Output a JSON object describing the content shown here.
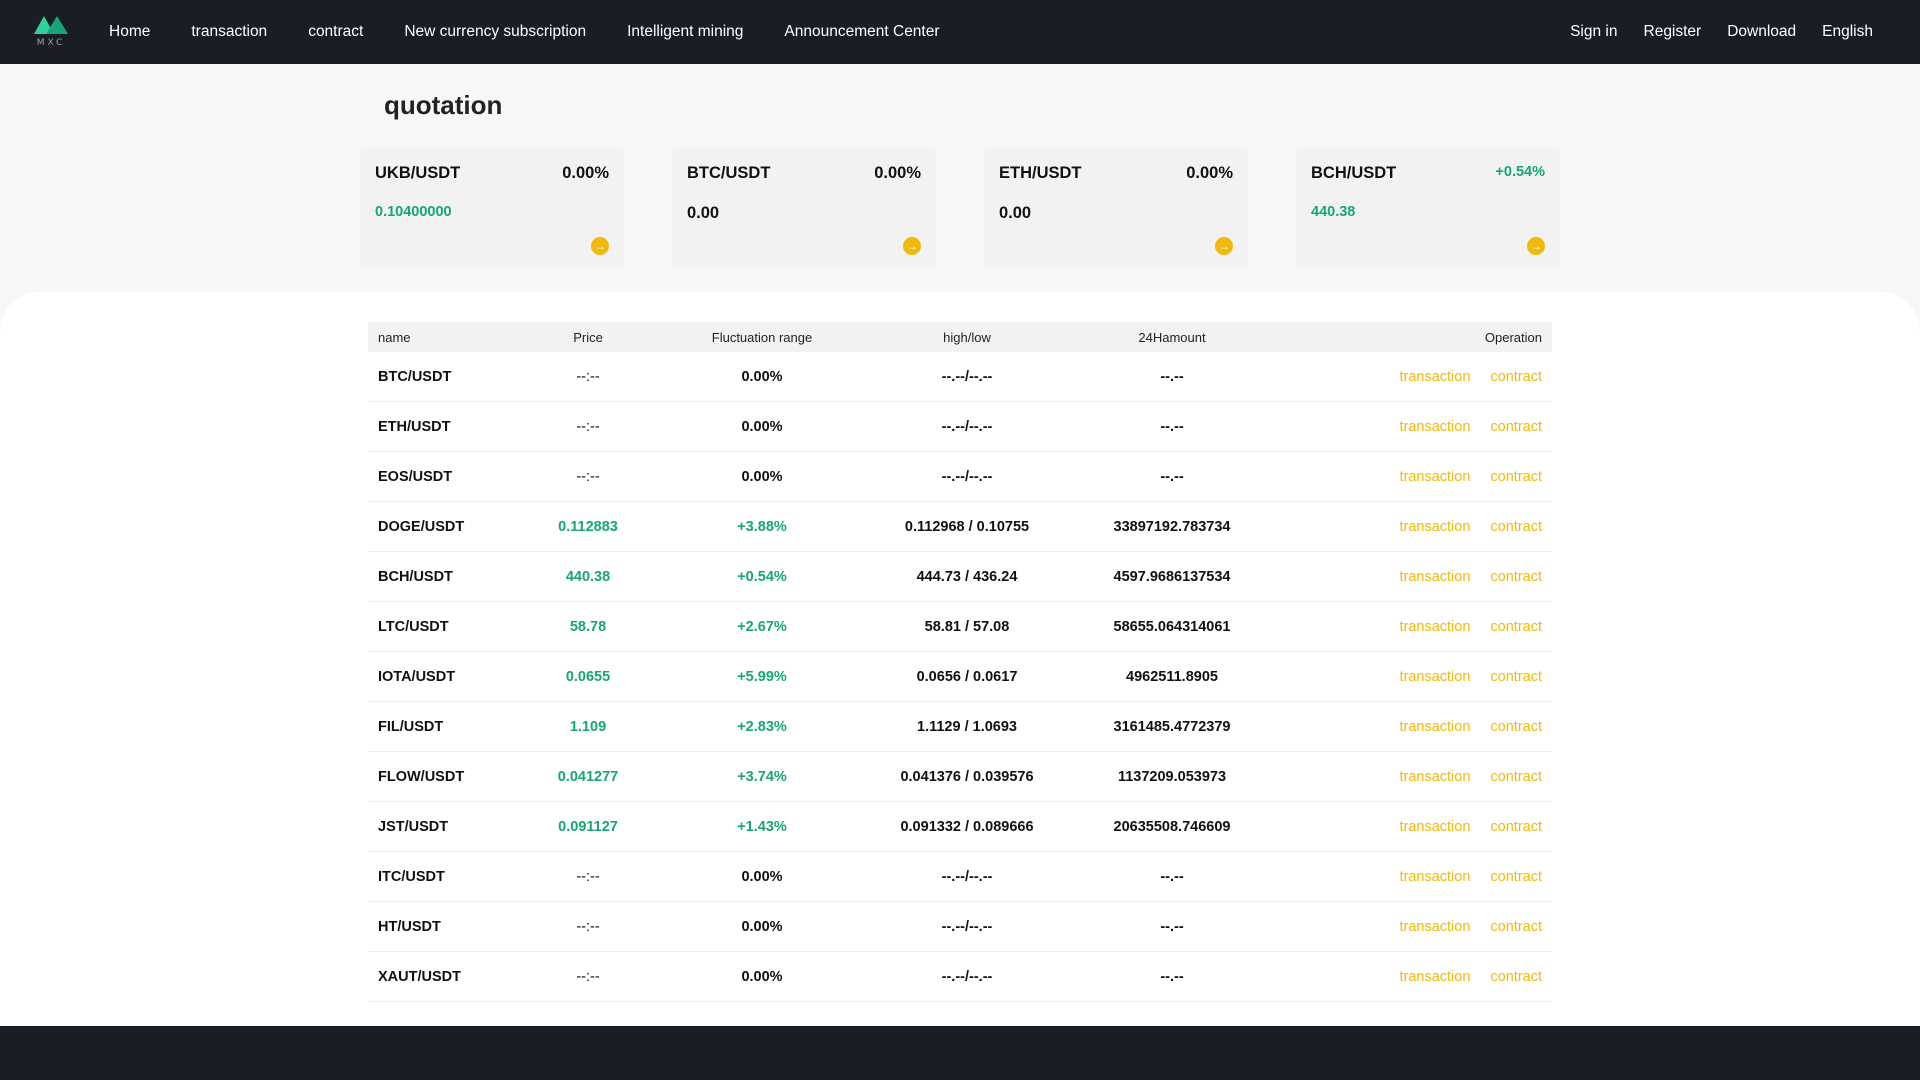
{
  "header": {
    "logo_text": "MXC",
    "nav": [
      "Home",
      "transaction",
      "contract",
      "New currency subscription",
      "Intelligent mining",
      "Announcement Center"
    ],
    "right": [
      "Sign in",
      "Register",
      "Download",
      "English"
    ]
  },
  "page": {
    "title": "quotation"
  },
  "cards": [
    {
      "pair": "UKB/USDT",
      "change": "0.00%",
      "price": "0.10400000",
      "price_green": true,
      "change_green": false
    },
    {
      "pair": "BTC/USDT",
      "change": "0.00%",
      "price": "0.00",
      "price_green": false,
      "change_green": false
    },
    {
      "pair": "ETH/USDT",
      "change": "0.00%",
      "price": "0.00",
      "price_green": false,
      "change_green": false
    },
    {
      "pair": "BCH/USDT",
      "change": "+0.54%",
      "price": "440.38",
      "price_green": true,
      "change_green": true
    }
  ],
  "table": {
    "headers": {
      "name": "name",
      "price": "Price",
      "change": "Fluctuation range",
      "highlow": "high/low",
      "amount": "24Hamount",
      "operation": "Operation"
    },
    "op_labels": {
      "transaction": "transaction",
      "contract": "contract"
    },
    "rows": [
      {
        "name": "BTC/USDT",
        "price": "--:--",
        "change": "0.00%",
        "highlow": "--.--/--.--",
        "amount": "--.--",
        "up": false
      },
      {
        "name": "ETH/USDT",
        "price": "--:--",
        "change": "0.00%",
        "highlow": "--.--/--.--",
        "amount": "--.--",
        "up": false
      },
      {
        "name": "EOS/USDT",
        "price": "--:--",
        "change": "0.00%",
        "highlow": "--.--/--.--",
        "amount": "--.--",
        "up": false
      },
      {
        "name": "DOGE/USDT",
        "price": "0.112883",
        "change": "+3.88%",
        "highlow": "0.112968 / 0.10755",
        "amount": "33897192.783734",
        "up": true
      },
      {
        "name": "BCH/USDT",
        "price": "440.38",
        "change": "+0.54%",
        "highlow": "444.73 / 436.24",
        "amount": "4597.9686137534",
        "up": true
      },
      {
        "name": "LTC/USDT",
        "price": "58.78",
        "change": "+2.67%",
        "highlow": "58.81 / 57.08",
        "amount": "58655.064314061",
        "up": true
      },
      {
        "name": "IOTA/USDT",
        "price": "0.0655",
        "change": "+5.99%",
        "highlow": "0.0656 / 0.0617",
        "amount": "4962511.8905",
        "up": true
      },
      {
        "name": "FIL/USDT",
        "price": "1.109",
        "change": "+2.83%",
        "highlow": "1.1129 / 1.0693",
        "amount": "3161485.4772379",
        "up": true
      },
      {
        "name": "FLOW/USDT",
        "price": "0.041277",
        "change": "+3.74%",
        "highlow": "0.041376 / 0.039576",
        "amount": "1137209.053973",
        "up": true
      },
      {
        "name": "JST/USDT",
        "price": "0.091127",
        "change": "+1.43%",
        "highlow": "0.091332 / 0.089666",
        "amount": "20635508.746609",
        "up": true
      },
      {
        "name": "ITC/USDT",
        "price": "--:--",
        "change": "0.00%",
        "highlow": "--.--/--.--",
        "amount": "--.--",
        "up": false
      },
      {
        "name": "HT/USDT",
        "price": "--:--",
        "change": "0.00%",
        "highlow": "--.--/--.--",
        "amount": "--.--",
        "up": false
      },
      {
        "name": "XAUT/USDT",
        "price": "--:--",
        "change": "0.00%",
        "highlow": "--.--/--.--",
        "amount": "--.--",
        "up": false
      }
    ]
  },
  "colors": {
    "up_green": "#16a57b",
    "link_gold": "#f0b90b",
    "header_bg": "#1b1d24"
  }
}
